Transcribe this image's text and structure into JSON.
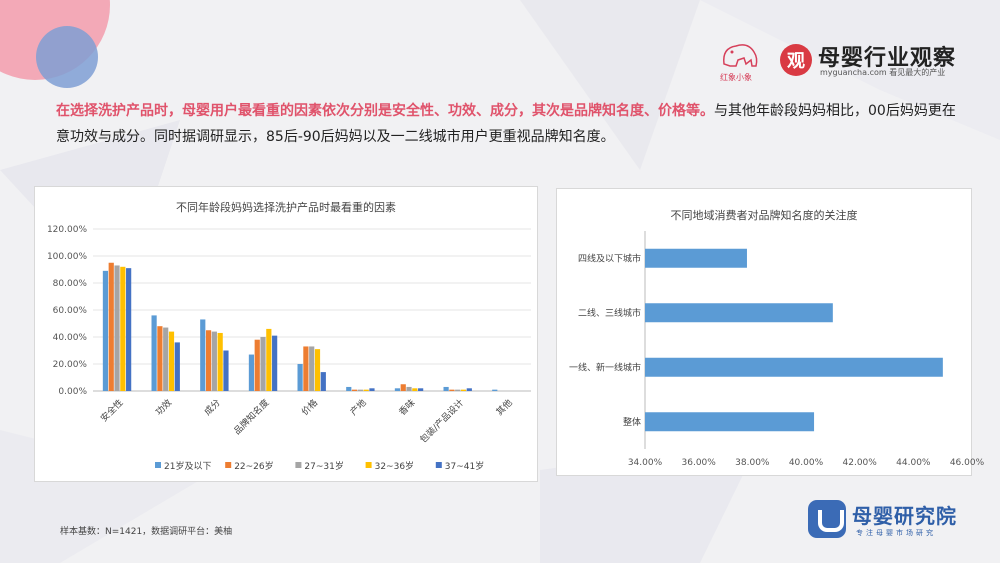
{
  "header": {
    "elephant_logo_text": "红象小象",
    "guan_logo_char": "观",
    "brand_title": "母婴行业观察",
    "brand_sub": "myguancha.com 看见最大的产业"
  },
  "headline": {
    "highlight": "在选择洗护产品时，母婴用户最看重的因素依次分别是安全性、功效、成分，其次是品牌知名度、价格等。",
    "rest": "与其他年龄段妈妈相比，00后妈妈更在意功效与成分。同时据调研显示，85后-90后妈妈以及一二线城市用户更重视品牌知名度。"
  },
  "footer": {
    "note": "样本基数：N=1421，数据调研平台：美柚",
    "institute_name": "母婴研究院",
    "institute_slogan": "专注母婴市场研究"
  },
  "chart_data": [
    {
      "type": "bar",
      "title": "不同年龄段妈妈选择洗护产品时最看重的因素",
      "categories": [
        "安全性",
        "功效",
        "成分",
        "品牌知名度",
        "价格",
        "产地",
        "香味",
        "包装/产品设计",
        "其他"
      ],
      "ylim": [
        0,
        1.2
      ],
      "yticks": [
        "0.00%",
        "20.00%",
        "40.00%",
        "60.00%",
        "80.00%",
        "100.00%",
        "120.00%"
      ],
      "legend_position": "bottom",
      "series": [
        {
          "name": "21岁及以下",
          "color": "#5b9bd5",
          "values": [
            0.89,
            0.56,
            0.53,
            0.27,
            0.2,
            0.03,
            0.02,
            0.03,
            0.01
          ]
        },
        {
          "name": "22~26岁",
          "color": "#ed7d31",
          "values": [
            0.95,
            0.48,
            0.45,
            0.38,
            0.33,
            0.01,
            0.05,
            0.01,
            0.0
          ]
        },
        {
          "name": "27~31岁",
          "color": "#a5a5a5",
          "values": [
            0.93,
            0.47,
            0.44,
            0.4,
            0.33,
            0.01,
            0.03,
            0.01,
            0.0
          ]
        },
        {
          "name": "32~36岁",
          "color": "#ffc000",
          "values": [
            0.92,
            0.44,
            0.43,
            0.46,
            0.31,
            0.01,
            0.02,
            0.01,
            0.0
          ]
        },
        {
          "name": "37~41岁",
          "color": "#4472c4",
          "values": [
            0.91,
            0.36,
            0.3,
            0.41,
            0.14,
            0.02,
            0.02,
            0.02,
            0.0
          ]
        }
      ]
    },
    {
      "type": "bar",
      "orientation": "horizontal",
      "title": "不同地域消费者对品牌知名度的关注度",
      "categories": [
        "四线及以下城市",
        "二线、三线城市",
        "一线、新一线城市",
        "整体"
      ],
      "values": [
        0.378,
        0.41,
        0.451,
        0.403
      ],
      "color": "#5b9bd5",
      "xlim": [
        0.34,
        0.46
      ],
      "xticks": [
        "34.00%",
        "36.00%",
        "38.00%",
        "40.00%",
        "42.00%",
        "44.00%",
        "46.00%"
      ]
    }
  ]
}
